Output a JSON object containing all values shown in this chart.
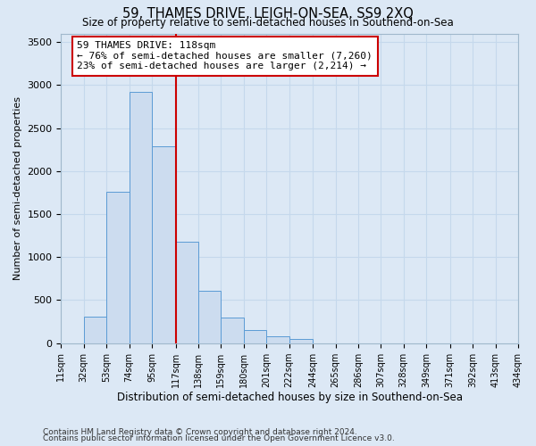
{
  "title": "59, THAMES DRIVE, LEIGH-ON-SEA, SS9 2XQ",
  "subtitle": "Size of property relative to semi-detached houses in Southend-on-Sea",
  "xlabel": "Distribution of semi-detached houses by size in Southend-on-Sea",
  "ylabel": "Number of semi-detached properties",
  "footer1": "Contains HM Land Registry data © Crown copyright and database right 2024.",
  "footer2": "Contains public sector information licensed under the Open Government Licence v3.0.",
  "annotation_title": "59 THAMES DRIVE: 118sqm",
  "annotation_line1": "← 76% of semi-detached houses are smaller (7,260)",
  "annotation_line2": "23% of semi-detached houses are larger (2,214) →",
  "bar_edges": [
    11,
    32,
    53,
    74,
    95,
    117,
    138,
    159,
    180,
    201,
    222,
    244,
    265,
    286,
    307,
    328,
    349,
    371,
    392,
    413,
    434
  ],
  "bar_heights": [
    0,
    310,
    1760,
    2920,
    2290,
    1175,
    610,
    295,
    150,
    75,
    50,
    0,
    0,
    0,
    0,
    0,
    0,
    0,
    0,
    0
  ],
  "bar_color": "#ccdcef",
  "bar_edge_color": "#5b9bd5",
  "vline_color": "#cc0000",
  "vline_x": 117,
  "annotation_box_color": "#ffffff",
  "annotation_box_edge": "#cc0000",
  "grid_color": "#c5d8ec",
  "bg_color": "#dce8f5",
  "ylim": [
    0,
    3600
  ],
  "yticks": [
    0,
    500,
    1000,
    1500,
    2000,
    2500,
    3000,
    3500
  ]
}
